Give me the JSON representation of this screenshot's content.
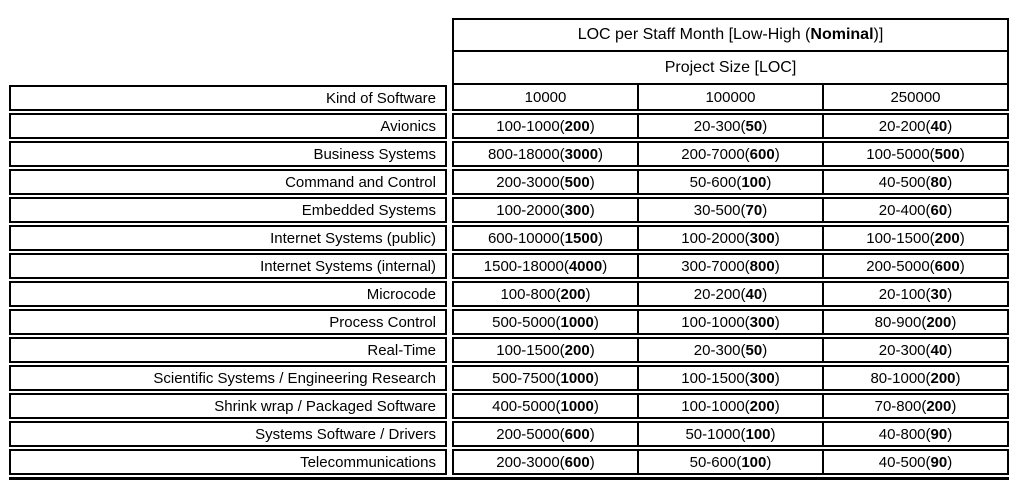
{
  "colors": {
    "background": "#ffffff",
    "border": "#000000",
    "text": "#000000"
  },
  "table": {
    "title": {
      "prefix": "LOC per Staff Month [Low-High (",
      "bold": "Nominal",
      "suffix": ")]"
    },
    "subtitle": "Project Size [LOC]",
    "kind_header": "Kind of Software",
    "size_headers": [
      "10000",
      "100000",
      "250000"
    ],
    "rows": [
      {
        "label": "Avionics",
        "cells": [
          {
            "range": "100-1000",
            "nominal": "200"
          },
          {
            "range": "20-300",
            "nominal": "50"
          },
          {
            "range": "20-200",
            "nominal": "40"
          }
        ]
      },
      {
        "label": "Business Systems",
        "cells": [
          {
            "range": "800-18000",
            "nominal": "3000"
          },
          {
            "range": "200-7000",
            "nominal": "600"
          },
          {
            "range": "100-5000",
            "nominal": "500"
          }
        ]
      },
      {
        "label": "Command and Control",
        "cells": [
          {
            "range": "200-3000",
            "nominal": "500"
          },
          {
            "range": "50-600",
            "nominal": "100"
          },
          {
            "range": "40-500",
            "nominal": "80"
          }
        ]
      },
      {
        "label": "Embedded Systems",
        "cells": [
          {
            "range": "100-2000",
            "nominal": "300"
          },
          {
            "range": "30-500",
            "nominal": "70"
          },
          {
            "range": "20-400",
            "nominal": "60"
          }
        ]
      },
      {
        "label": "Internet Systems (public)",
        "cells": [
          {
            "range": "600-10000",
            "nominal": "1500"
          },
          {
            "range": "100-2000",
            "nominal": "300"
          },
          {
            "range": "100-1500",
            "nominal": "200"
          }
        ]
      },
      {
        "label": "Internet Systems (internal)",
        "cells": [
          {
            "range": "1500-18000",
            "nominal": "4000"
          },
          {
            "range": "300-7000",
            "nominal": "800"
          },
          {
            "range": "200-5000",
            "nominal": "600"
          }
        ]
      },
      {
        "label": "Microcode",
        "cells": [
          {
            "range": "100-800",
            "nominal": "200"
          },
          {
            "range": "20-200",
            "nominal": "40"
          },
          {
            "range": "20-100",
            "nominal": "30"
          }
        ]
      },
      {
        "label": "Process Control",
        "cells": [
          {
            "range": "500-5000",
            "nominal": "1000"
          },
          {
            "range": "100-1000",
            "nominal": "300"
          },
          {
            "range": "80-900",
            "nominal": "200"
          }
        ]
      },
      {
        "label": "Real-Time",
        "cells": [
          {
            "range": "100-1500",
            "nominal": "200"
          },
          {
            "range": "20-300",
            "nominal": "50"
          },
          {
            "range": "20-300",
            "nominal": "40"
          }
        ]
      },
      {
        "label": "Scientific Systems / Engineering Research",
        "cells": [
          {
            "range": "500-7500",
            "nominal": "1000"
          },
          {
            "range": "100-1500",
            "nominal": "300"
          },
          {
            "range": "80-1000",
            "nominal": "200"
          }
        ]
      },
      {
        "label": "Shrink wrap / Packaged Software",
        "cells": [
          {
            "range": "400-5000",
            "nominal": "1000"
          },
          {
            "range": "100-1000",
            "nominal": "200"
          },
          {
            "range": "70-800",
            "nominal": "200"
          }
        ]
      },
      {
        "label": "Systems Software / Drivers",
        "cells": [
          {
            "range": "200-5000",
            "nominal": "600"
          },
          {
            "range": "50-1000",
            "nominal": "100"
          },
          {
            "range": "40-800",
            "nominal": "90"
          }
        ]
      },
      {
        "label": "Telecommunications",
        "cells": [
          {
            "range": "200-3000",
            "nominal": "600"
          },
          {
            "range": "50-600",
            "nominal": "100"
          },
          {
            "range": "40-500",
            "nominal": "90"
          }
        ]
      }
    ]
  }
}
